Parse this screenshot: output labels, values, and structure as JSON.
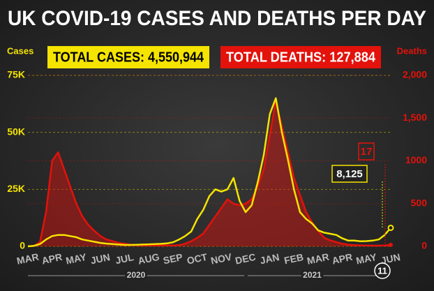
{
  "chart_data": {
    "type": "line",
    "title": "UK COVID-19 CASES AND DEATHS PER DAY",
    "total_cases": "TOTAL CASES: 4,550,944",
    "total_deaths": "TOTAL DEATHS: 127,884",
    "ylabel": "Cases",
    "y2label": "Deaths",
    "years": [
      "2020",
      "2021"
    ],
    "end_date": "11",
    "annotations": [
      {
        "text": "17",
        "color": "#e3120b"
      },
      {
        "text": "8,125",
        "color": "#f5e400"
      }
    ],
    "categories": [
      "MAR",
      null,
      null,
      null,
      "APR",
      null,
      null,
      null,
      "MAY",
      null,
      null,
      null,
      "JUN",
      null,
      null,
      null,
      "JUL",
      null,
      null,
      null,
      "AUG",
      null,
      null,
      null,
      "SEP",
      null,
      null,
      null,
      "OCT",
      null,
      null,
      null,
      "NOV",
      null,
      null,
      null,
      "DEC",
      null,
      null,
      null,
      "JAN",
      null,
      null,
      null,
      "FEB",
      null,
      null,
      null,
      "MAR",
      null,
      null,
      null,
      "APR",
      null,
      null,
      null,
      "MAY",
      null,
      null,
      null,
      "JUN"
    ],
    "series": [
      {
        "name": "Deaths",
        "color": "#e3120b",
        "axis": "y2",
        "fill": true,
        "values": [
          0,
          5,
          50,
          400,
          1000,
          1100,
          900,
          700,
          500,
          350,
          250,
          180,
          120,
          80,
          60,
          40,
          30,
          20,
          15,
          10,
          10,
          10,
          10,
          10,
          10,
          15,
          30,
          60,
          100,
          150,
          250,
          350,
          450,
          550,
          500,
          480,
          500,
          550,
          700,
          900,
          1300,
          1700,
          1400,
          1100,
          800,
          600,
          400,
          280,
          180,
          100,
          70,
          50,
          30,
          20,
          15,
          10,
          10,
          8,
          8,
          10,
          17
        ]
      },
      {
        "name": "Cases",
        "color": "#f5e400",
        "values": [
          0,
          200,
          1000,
          3000,
          4500,
          5000,
          5000,
          4500,
          4000,
          3000,
          2500,
          2000,
          1500,
          1200,
          1000,
          800,
          600,
          600,
          700,
          800,
          900,
          1000,
          1100,
          1300,
          1800,
          3000,
          4500,
          6500,
          12000,
          16000,
          22000,
          25000,
          24000,
          25000,
          30000,
          20000,
          15000,
          18000,
          28000,
          40000,
          58000,
          65000,
          50000,
          38000,
          25000,
          15000,
          12000,
          10000,
          7000,
          6000,
          5500,
          5000,
          3500,
          2500,
          2500,
          2200,
          2300,
          2500,
          3000,
          5000,
          8125
        ]
      }
    ],
    "ylim": [
      0,
      75000
    ],
    "yticks": [
      0,
      {
        "value": 25000,
        "label": "25K"
      },
      {
        "value": 50000,
        "label": "50K"
      },
      {
        "value": 75000,
        "label": "75K"
      }
    ],
    "y2lim": [
      0,
      2000
    ],
    "y2ticks": [
      0,
      500,
      1000,
      {
        "value": 1500,
        "label": "1,500"
      },
      {
        "value": 2000,
        "label": "2,000"
      }
    ],
    "grid": true
  }
}
